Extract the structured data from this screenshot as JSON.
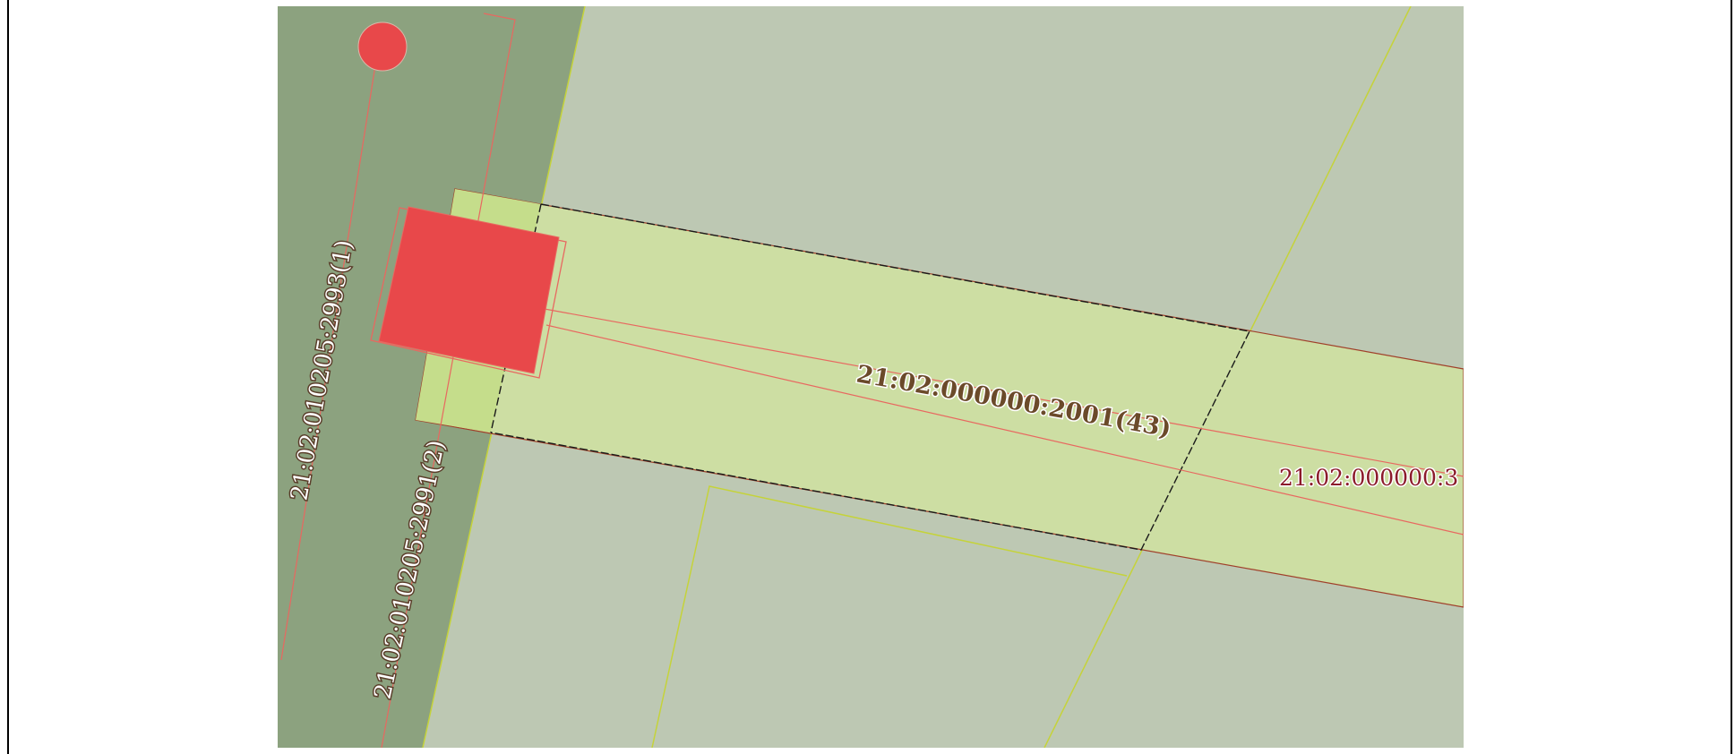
{
  "map": {
    "colors": {
      "background_gray": "#bdc8b3",
      "dark_strip": "#8ca27f",
      "parcel_fill": "#cddea3",
      "parcel_highlight": "#c5dd8b",
      "building_red": "#e8484a",
      "boundary_red": "#e86860",
      "boundary_yellow": "#c5d33a",
      "dashed_black": "#1a1a1a"
    },
    "labels": {
      "parcel_2993": "21:02:010205:2993(1)",
      "parcel_2991": "21:02:010205:2991(2)",
      "parcel_2001": "21:02:000000:2001(43)",
      "parcel_3_partial": "21:02:000000:3"
    },
    "markers": [
      {
        "name": "point-marker",
        "color": "#e8484a"
      }
    ]
  }
}
